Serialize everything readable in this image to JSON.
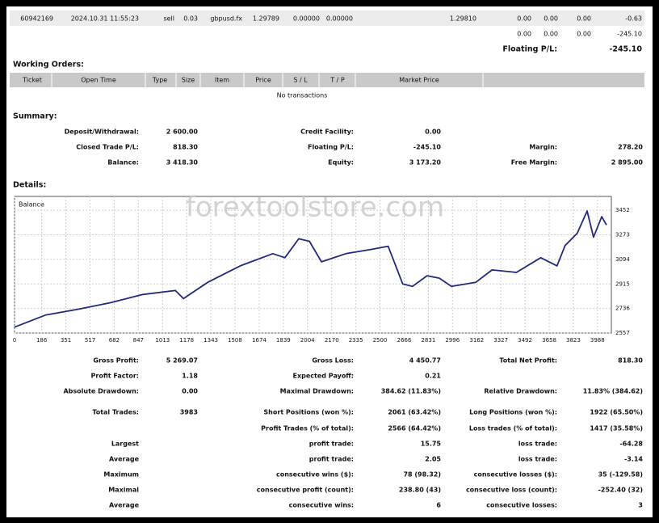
{
  "trade_row": [
    "60942169",
    "2024.10.31 11:55:23",
    "sell",
    "0.03",
    "gbpusd.fx",
    "1.29789",
    "0.00000",
    "0.00000",
    null,
    "1.29810",
    "0.00",
    "0.00",
    "0.00",
    "-0.63"
  ],
  "totals_row": [
    "0.00",
    "0.00",
    "0.00",
    "-245.10"
  ],
  "floating": {
    "label": "Floating P/L:",
    "value": "-245.10"
  },
  "working_orders": {
    "title": "Working Orders:",
    "headers": [
      "Ticket",
      "Open Time",
      "Type",
      "Size",
      "Item",
      "Price",
      "S / L",
      "T / P",
      "Market Price"
    ],
    "empty": "No transactions"
  },
  "summary": {
    "title": "Summary:",
    "rows": [
      [
        "Deposit/Withdrawal:",
        "2 600.00",
        "Credit Facility:",
        "0.00",
        null,
        null
      ],
      [
        "Closed Trade P/L:",
        "818.30",
        "Floating P/L:",
        "-245.10",
        "Margin:",
        "278.20"
      ],
      [
        "Balance:",
        "3 418.30",
        "Equity:",
        "3 173.20",
        "Free Margin:",
        "2 895.00"
      ]
    ]
  },
  "details_title": "Details:",
  "watermark": "forextoolstore.com",
  "chart_data": {
    "type": "line",
    "label": "Balance",
    "x": [
      0,
      211,
      433,
      656,
      878,
      1100,
      1156,
      1322,
      1544,
      1767,
      1850,
      1944,
      2017,
      2100,
      2267,
      2433,
      2556,
      2656,
      2722,
      2822,
      2906,
      2989,
      3156,
      3267,
      3433,
      3600,
      3711,
      3767,
      3850,
      3917,
      3961,
      4017,
      4050
    ],
    "values": [
      2600,
      2688,
      2730,
      2778,
      2838,
      2867,
      2808,
      2927,
      3047,
      3136,
      3106,
      3244,
      3226,
      3076,
      3136,
      3166,
      3190,
      2915,
      2897,
      2975,
      2957,
      2897,
      2927,
      3017,
      2999,
      3106,
      3047,
      3196,
      3285,
      3447,
      3256,
      3405,
      3345
    ],
    "color": "#1f2a7a",
    "xlim": [
      0,
      4083
    ],
    "ylim": [
      2557,
      3553
    ],
    "xticks": [
      0,
      186,
      351,
      517,
      682,
      847,
      1013,
      1178,
      1343,
      1508,
      1674,
      1839,
      2004,
      2170,
      2335,
      2500,
      2666,
      2831,
      2996,
      3162,
      3327,
      3492,
      3658,
      3823,
      3988
    ],
    "yticks": [
      2557,
      2736,
      2915,
      3094,
      3273,
      3452
    ],
    "grid": true
  },
  "statistics": [
    [
      "Gross Profit:",
      "5 269.07",
      "Gross Loss:",
      "4 450.77",
      "Total Net Profit:",
      "818.30"
    ],
    [
      "Profit Factor:",
      "1.18",
      "Expected Payoff:",
      "0.21",
      null,
      null
    ],
    [
      "Absolute Drawdown:",
      "0.00",
      "Maximal Drawdown:",
      "384.62 (11.83%)",
      "Relative Drawdown:",
      "11.83% (384.62)"
    ],
    [
      "Total Trades:",
      "3983",
      "Short Positions (won %):",
      "2061 (63.42%)",
      "Long Positions (won %):",
      "1922 (65.50%)"
    ],
    [
      null,
      null,
      "Profit Trades (% of total):",
      "2566 (64.42%)",
      "Loss trades (% of total):",
      "1417 (35.58%)"
    ],
    [
      "Largest",
      null,
      "profit trade:",
      "15.75",
      "loss trade:",
      "-64.28"
    ],
    [
      "Average",
      null,
      "profit trade:",
      "2.05",
      "loss trade:",
      "-3.14"
    ],
    [
      "Maximum",
      null,
      "consecutive wins ($):",
      "78 (98.32)",
      "consecutive losses ($):",
      "35 (-129.58)"
    ],
    [
      "Maximal",
      null,
      "consecutive profit (count):",
      "238.80 (43)",
      "consecutive loss (count):",
      "-252.40 (32)"
    ],
    [
      "Average",
      null,
      "consecutive wins:",
      "6",
      "consecutive losses:",
      "3"
    ]
  ]
}
